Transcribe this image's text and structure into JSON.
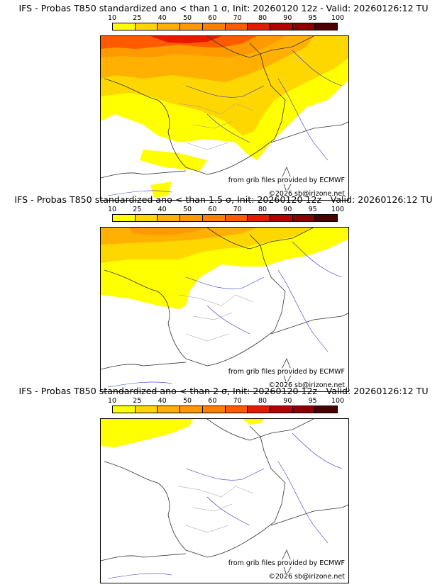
{
  "colorbar": {
    "ticks": [
      "10",
      "25",
      "40",
      "50",
      "60",
      "70",
      "80",
      "90",
      "95",
      "100"
    ],
    "colors": [
      "#ffff00",
      "#ffd700",
      "#ffb000",
      "#ff9900",
      "#ff8000",
      "#ff5a00",
      "#e61a00",
      "#b80000",
      "#8b0000",
      "#4a0000"
    ]
  },
  "panels": [
    {
      "title": "IFS - Probas T850  standardized ano < than 1 σ, Init: 20260120 12z - Valid: 20260126:12 TU",
      "credit_source": "from grib files provided by ECMWF",
      "copyright": "©2026 sb@irizone.net"
    },
    {
      "title": "IFS - Probas T850  standardized ano < than 1.5 σ, Init: 20260120 12z - Valid: 20260126:12 TU",
      "credit_source": "from grib files provided by ECMWF",
      "copyright": "©2026 sb@irizone.net"
    },
    {
      "title": "IFS - Probas T850  standardized ano < than 2 σ, Init: 20260120 12z - Valid: 20260126:12 TU",
      "credit_source": "from grib files provided by ECMWF",
      "copyright": "©2026 sb@irizone.net"
    }
  ]
}
